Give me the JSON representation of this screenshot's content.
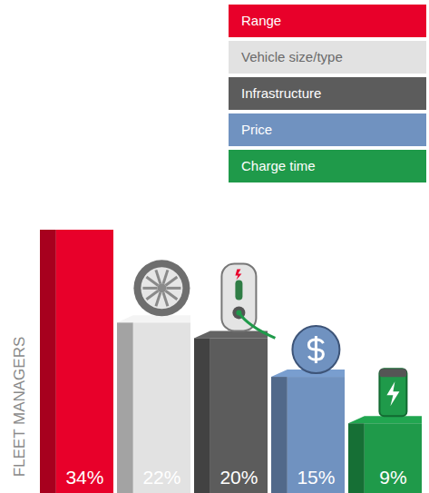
{
  "chart_data": {
    "type": "bar",
    "y_label": "FLEET MANAGERS",
    "categories": [
      "Range",
      "Vehicle size/type",
      "Infrastructure",
      "Price",
      "Charge time"
    ],
    "values": [
      34,
      22,
      20,
      15,
      9
    ],
    "value_labels": [
      "34%",
      "22%",
      "20%",
      "15%",
      "9%"
    ],
    "colors": [
      "#e8002a",
      "#e2e2e2",
      "#5c5c5c",
      "#7092c0",
      "#1f9a4a"
    ],
    "data_labels": true,
    "legend": "upper right",
    "tick_labels": false,
    "grid": false
  }
}
